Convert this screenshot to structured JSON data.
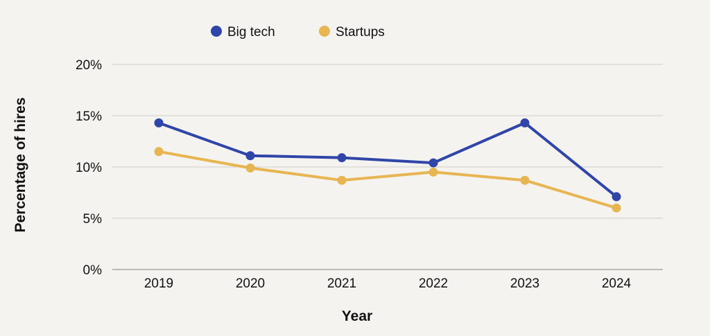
{
  "colors": {
    "big_tech": "#2f45a8",
    "startups": "#e8b553",
    "background": "#f5f3f0",
    "grid": "#cfcdca"
  },
  "chart_data": {
    "type": "line",
    "title": "",
    "xlabel": "Year",
    "ylabel": "Percentage of hires",
    "categories": [
      "2019",
      "2020",
      "2021",
      "2022",
      "2023",
      "2024"
    ],
    "y_ticks": [
      "0%",
      "5%",
      "10%",
      "15%",
      "20%"
    ],
    "ylim": [
      0,
      20
    ],
    "grid": true,
    "legend_position": "top-center",
    "series": [
      {
        "name": "Big tech",
        "color": "#2f45a8",
        "values": [
          14.3,
          11.1,
          10.9,
          10.4,
          14.3,
          7.1
        ]
      },
      {
        "name": "Startups",
        "color": "#e8b553",
        "values": [
          11.5,
          9.9,
          8.7,
          9.5,
          8.7,
          6.0
        ]
      }
    ]
  }
}
